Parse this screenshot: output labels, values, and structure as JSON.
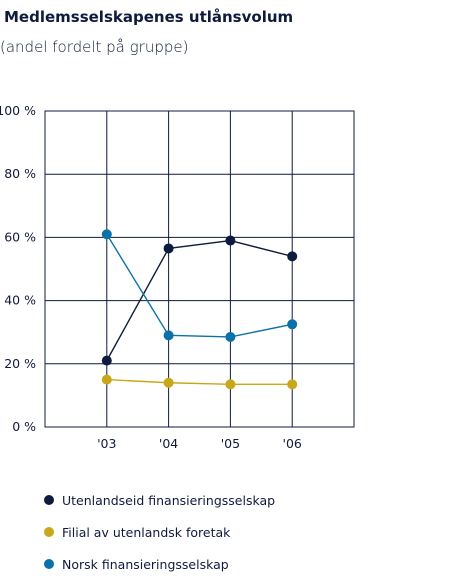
{
  "chart_data": {
    "type": "line",
    "title": "Medlemsselskapenes utlånsvolum",
    "subtitle": "(andel fordelt på gruppe)",
    "categories": [
      "'03",
      "'04",
      "'05",
      "'06"
    ],
    "yticks": [
      "0 %",
      "20 %",
      "40 %",
      "60 %",
      "80 %",
      "100 %"
    ],
    "ylim": [
      0,
      100
    ],
    "grid": true,
    "legend_position": "bottom",
    "series": [
      {
        "name": "Utenlandseid finansieringsselskap",
        "color": "#0d1b3e",
        "values": [
          21,
          56.5,
          59,
          54
        ]
      },
      {
        "name": "Filial av utenlandsk foretak",
        "color": "#c8a818",
        "values": [
          15,
          14,
          13.5,
          13.5
        ]
      },
      {
        "name": "Norsk finansieringsselskap",
        "color": "#0a72a8",
        "values": [
          61,
          29,
          28.5,
          32.5
        ]
      }
    ]
  }
}
